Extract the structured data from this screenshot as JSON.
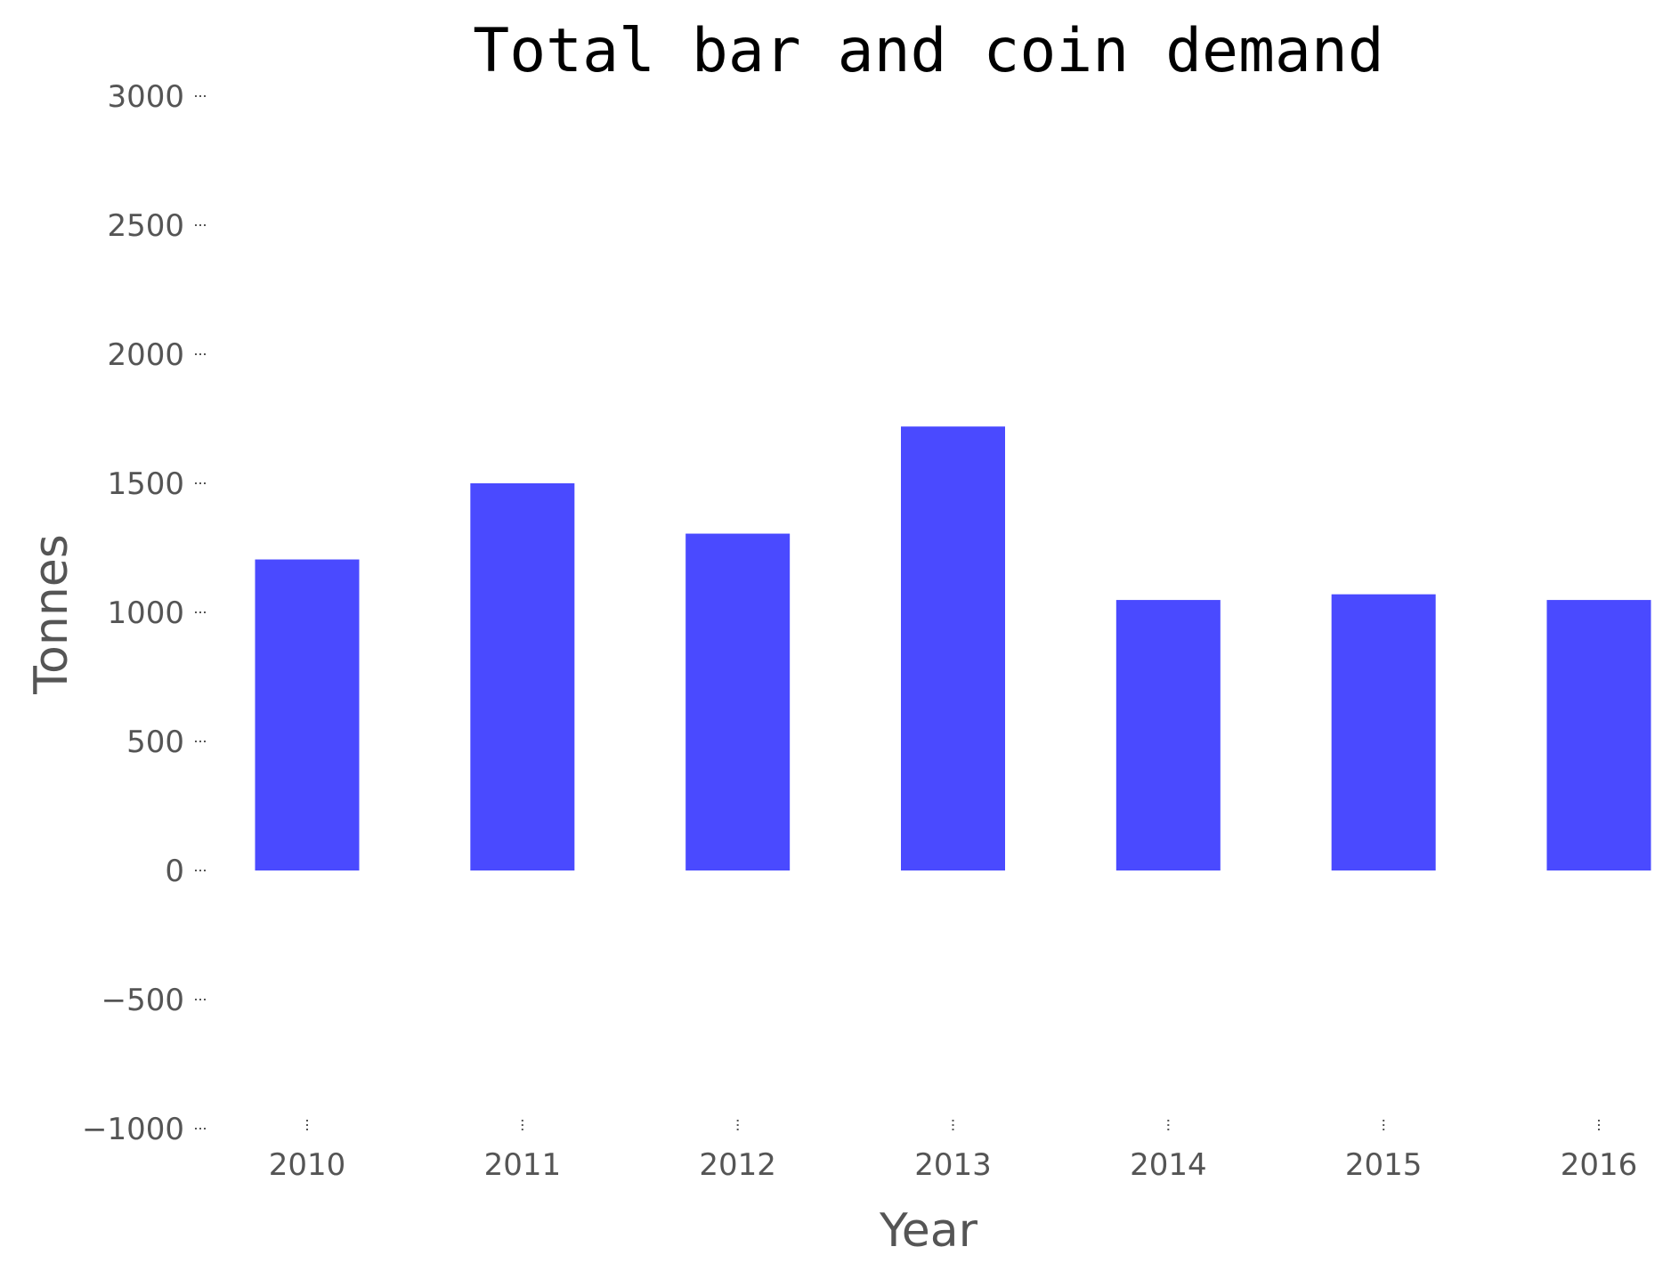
{
  "chart_data": {
    "type": "bar",
    "title": "Total bar and coin demand",
    "xlabel": "Year",
    "ylabel": "Tonnes",
    "categories": [
      "2010",
      "2011",
      "2012",
      "2013",
      "2014",
      "2015",
      "2016"
    ],
    "values": [
      1205,
      1500,
      1305,
      1720,
      1048,
      1070,
      1048
    ],
    "ylim": [
      -1000,
      3000
    ],
    "yticks": [
      "−1000",
      "−500",
      "0",
      "500",
      "1000",
      "1500",
      "2000",
      "2500",
      "3000"
    ],
    "ytick_values": [
      -1000,
      -500,
      0,
      500,
      1000,
      1500,
      2000,
      2500,
      3000
    ],
    "grid": false,
    "bar_color": "#4a4aff"
  }
}
